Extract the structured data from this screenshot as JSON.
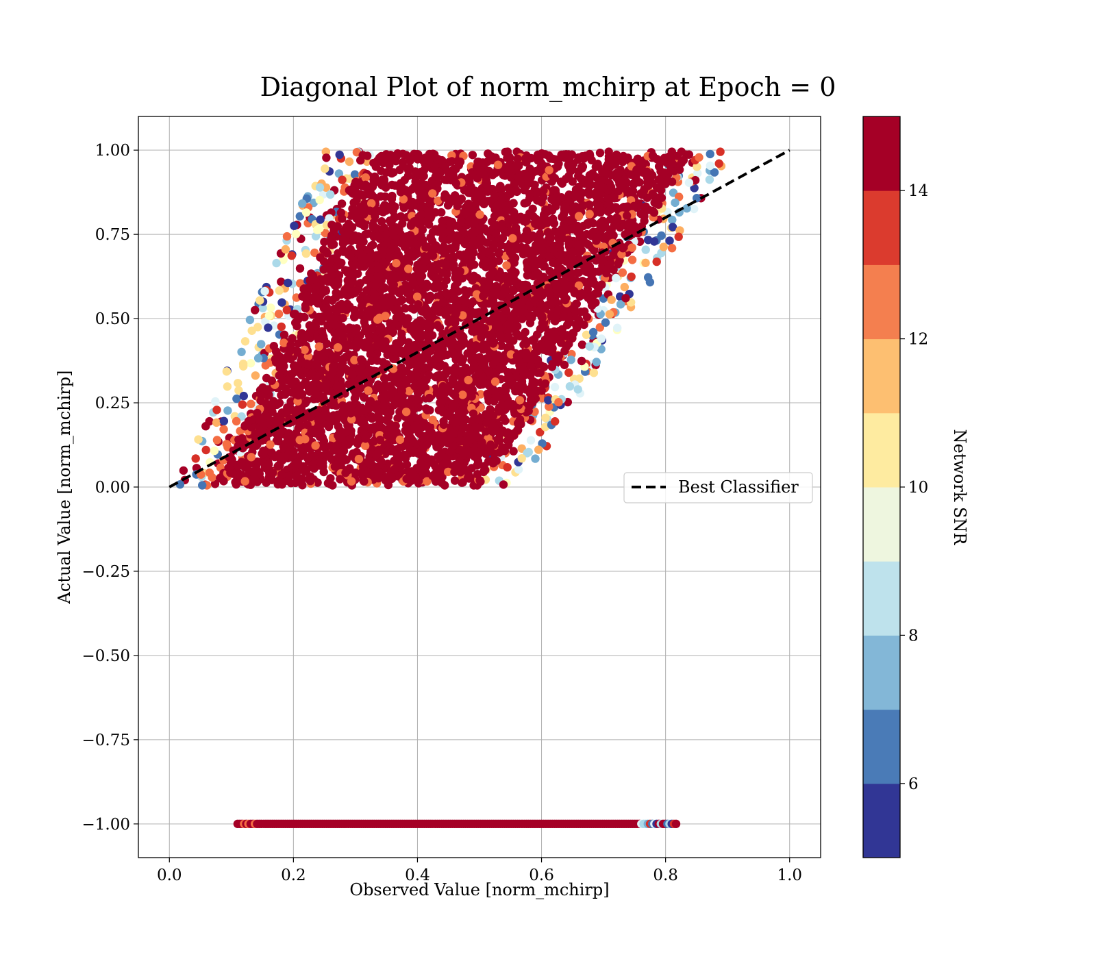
{
  "chart_data": {
    "type": "scatter",
    "title": "Diagonal Plot of norm_mchirp at Epoch = 0",
    "xlabel": "Observed Value [norm_mchirp]",
    "ylabel": "Actual Value [norm_mchirp]",
    "xlim": [
      -0.05,
      1.05
    ],
    "ylim": [
      -1.1,
      1.1
    ],
    "x_ticks": [
      0.0,
      0.2,
      0.4,
      0.6,
      0.8,
      1.0
    ],
    "x_tick_labels": [
      "0.0",
      "0.2",
      "0.4",
      "0.6",
      "0.8",
      "1.0"
    ],
    "y_ticks": [
      1.0,
      0.75,
      0.5,
      0.25,
      0.0,
      -0.25,
      -0.5,
      -0.75,
      -1.0
    ],
    "y_tick_labels": [
      "1.00",
      "0.75",
      "0.50",
      "0.25",
      "0.00",
      "−0.25",
      "−0.50",
      "−0.75",
      "−1.00"
    ],
    "grid": true,
    "legend": {
      "placement": "center-right",
      "entries": [
        "Best Classifier"
      ]
    },
    "reference_line": {
      "name": "Best Classifier",
      "x": [
        0.0,
        1.0
      ],
      "y": [
        0.0,
        1.0
      ],
      "style": "dashed",
      "color": "#000000"
    },
    "scatter_regions": [
      {
        "description_id": "main-band",
        "x_range_at_y0": [
          0.06,
          0.52
        ],
        "x_range_at_y1": [
          0.3,
          0.86
        ],
        "y_range": [
          0.0,
          1.0
        ]
      },
      {
        "description_id": "minus-one-row",
        "x_range": [
          0.11,
          0.82
        ],
        "y": -1.0
      }
    ],
    "colorbar": {
      "label": "Network SNR",
      "min": 5,
      "max": 15,
      "ticks": [
        6,
        8,
        10,
        12,
        14
      ],
      "tick_labels": [
        "6",
        "8",
        "10",
        "12",
        "14"
      ],
      "colors": [
        "#313695",
        "#4575b4",
        "#74add1",
        "#abd9e9",
        "#e0f3f8",
        "#ffffbf",
        "#fee090",
        "#fdae61",
        "#f46d43",
        "#d73027",
        "#a50026"
      ],
      "levels": [
        "#313695",
        "#4a7bb7",
        "#83b7d7",
        "#bee2ec",
        "#eef6df",
        "#feeba0",
        "#fdbf71",
        "#f47f4f",
        "#db3b2e",
        "#a50026"
      ]
    }
  }
}
